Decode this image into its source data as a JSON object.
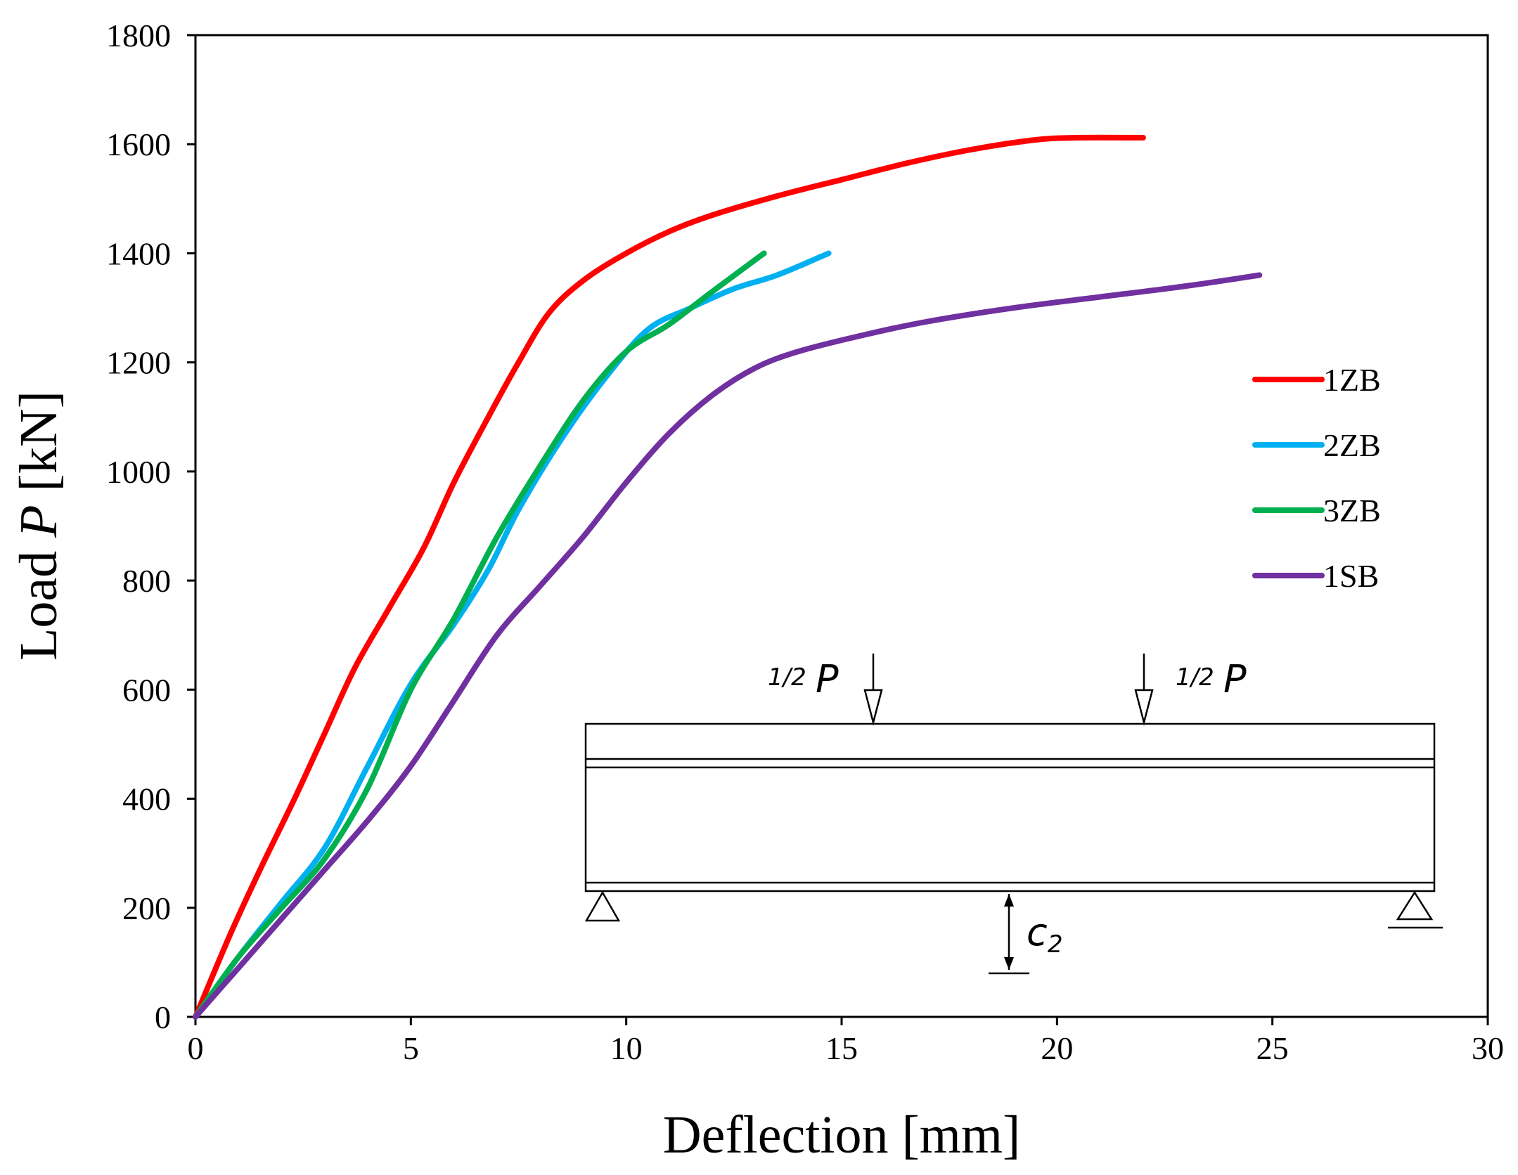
{
  "chart_data": {
    "type": "line",
    "title": "",
    "xlabel": "Deflection [mm]",
    "ylabel_prefix": "Load ",
    "ylabel_var": "P",
    "ylabel_unit": " [kN]",
    "xlim": [
      0,
      30
    ],
    "ylim": [
      0,
      1800
    ],
    "xticks": [
      "0",
      "5",
      "10",
      "15",
      "20",
      "25",
      "30"
    ],
    "yticks": [
      "0",
      "200",
      "400",
      "600",
      "800",
      "1000",
      "1200",
      "1400",
      "1600",
      "1800"
    ],
    "grid": false,
    "legend_position": "right",
    "series": [
      {
        "name": "1ZB",
        "color": "#ff0000",
        "x": [
          0,
          0.8,
          1.5,
          2.3,
          3.0,
          3.7,
          4.5,
          5.3,
          6.0,
          6.8,
          7.5,
          8.2,
          9.0,
          10.0,
          11.0,
          12.0,
          13.5,
          15.0,
          16.5,
          18.0,
          19.5,
          20.5,
          22.0
        ],
        "y": [
          0,
          150,
          270,
          400,
          520,
          640,
          750,
          860,
          980,
          1100,
          1200,
          1290,
          1350,
          1400,
          1440,
          1470,
          1505,
          1535,
          1565,
          1590,
          1608,
          1612,
          1612
        ]
      },
      {
        "name": "2ZB",
        "color": "#00b0f0",
        "x": [
          0,
          1.0,
          2.0,
          3.0,
          4.0,
          5.0,
          6.0,
          6.8,
          7.5,
          8.5,
          9.5,
          10.5,
          11.5,
          12.5,
          13.5,
          14.7
        ],
        "y": [
          0,
          110,
          210,
          310,
          460,
          610,
          720,
          820,
          930,
          1060,
          1170,
          1260,
          1300,
          1335,
          1360,
          1400
        ]
      },
      {
        "name": "3ZB",
        "color": "#00b050",
        "x": [
          0,
          1.0,
          2.0,
          3.0,
          4.0,
          5.0,
          6.0,
          7.0,
          8.0,
          9.0,
          10.0,
          11.0,
          12.0,
          13.2
        ],
        "y": [
          0,
          110,
          200,
          290,
          420,
          600,
          730,
          880,
          1010,
          1130,
          1220,
          1270,
          1330,
          1400
        ]
      },
      {
        "name": "1SB",
        "color": "#7030a0",
        "x": [
          0,
          1.0,
          2.0,
          3.0,
          4.0,
          5.0,
          6.0,
          7.0,
          8.0,
          9.0,
          10.0,
          11.0,
          12.0,
          13.0,
          14.0,
          15.5,
          17.0,
          19.0,
          21.0,
          23.0,
          24.7
        ],
        "y": [
          0,
          90,
          180,
          270,
          360,
          460,
          580,
          700,
          790,
          880,
          980,
          1070,
          1140,
          1190,
          1220,
          1250,
          1275,
          1300,
          1320,
          1340,
          1360
        ]
      }
    ]
  },
  "diagram": {
    "load_left_frac": "1/2",
    "load_right_frac": "1/2",
    "load_symbol": "P",
    "deflection_symbol": "c",
    "deflection_sub": "2"
  }
}
